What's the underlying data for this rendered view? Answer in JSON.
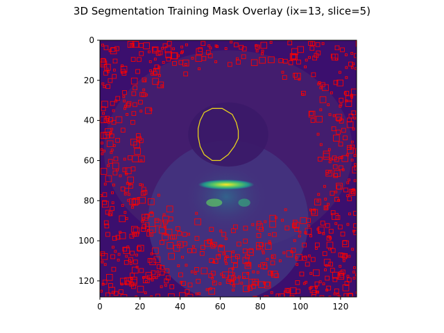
{
  "chart_data": {
    "type": "heatmap",
    "title": "3D Segmentation Training Mask Overlay (ix=13, slice=5)",
    "xlabel": "",
    "ylabel": "",
    "xlim": [
      0,
      128
    ],
    "ylim": [
      128,
      0
    ],
    "x_ticks": [
      0,
      20,
      40,
      60,
      80,
      100,
      120
    ],
    "y_ticks": [
      0,
      20,
      40,
      60,
      80,
      100,
      120
    ],
    "colormap": "viridis",
    "layers": [
      {
        "name": "MRI slice intensity",
        "kind": "image"
      },
      {
        "name": "Training mask contour",
        "kind": "contour",
        "color": "#ff0000"
      },
      {
        "name": "Segmentation target contour",
        "kind": "contour",
        "color": "#e8d21c"
      }
    ],
    "target_contour": {
      "color": "#e8d21c",
      "points": [
        [
          56,
          34
        ],
        [
          61,
          34
        ],
        [
          66,
          37
        ],
        [
          68,
          41
        ],
        [
          69,
          45
        ],
        [
          69,
          49
        ],
        [
          67,
          53
        ],
        [
          64,
          57
        ],
        [
          60,
          60
        ],
        [
          56,
          60
        ],
        [
          52,
          57
        ],
        [
          50,
          53
        ],
        [
          49,
          48
        ],
        [
          49,
          44
        ],
        [
          50,
          40
        ],
        [
          52,
          36
        ]
      ]
    },
    "bright_region": {
      "center": [
        63,
        72
      ],
      "rx": 14,
      "ry": 2.5
    }
  },
  "colors": {
    "background_dark": "#3b0f6e",
    "mask_red": "#ff0000",
    "target_yellow": "#e8d21c",
    "bright_yellow": "#fde725",
    "bright_green": "#5ec962"
  }
}
